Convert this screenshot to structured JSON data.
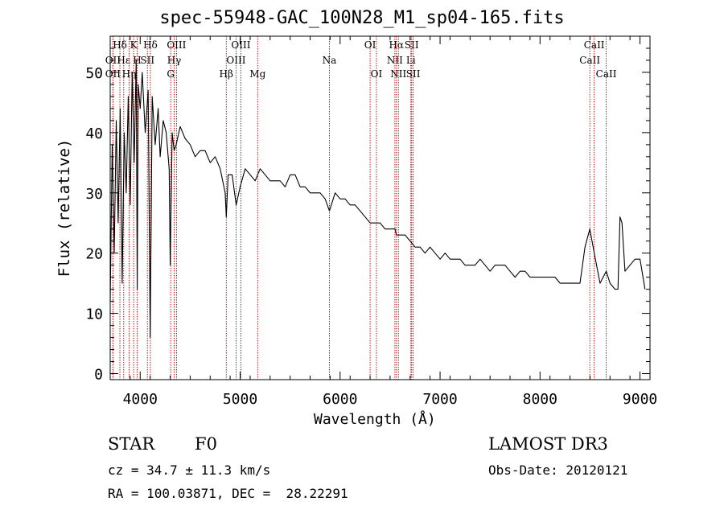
{
  "chart_data": {
    "type": "line",
    "title": "spec-55948-GAC_100N28_M1_sp04-165.fits",
    "xlabel": "Wavelength (Å)",
    "ylabel": "Flux (relative)",
    "xlim": [
      3700,
      9100
    ],
    "ylim": [
      -1,
      56
    ],
    "x_ticks": [
      4000,
      5000,
      6000,
      7000,
      8000,
      9000
    ],
    "y_ticks": [
      0,
      10,
      20,
      30,
      40,
      50
    ],
    "x_minor_step": 200,
    "y_minor_step": 2,
    "grid": false,
    "series": [
      {
        "name": "spectrum",
        "x": [
          3700,
          3720,
          3740,
          3760,
          3780,
          3800,
          3820,
          3840,
          3860,
          3880,
          3900,
          3920,
          3940,
          3960,
          3970,
          3980,
          4000,
          4020,
          4050,
          4080,
          4100,
          4120,
          4150,
          4180,
          4200,
          4230,
          4260,
          4290,
          4300,
          4320,
          4340,
          4360,
          4400,
          4450,
          4500,
          4550,
          4600,
          4650,
          4700,
          4750,
          4800,
          4850,
          4861,
          4880,
          4920,
          4960,
          5000,
          5050,
          5100,
          5150,
          5200,
          5250,
          5300,
          5350,
          5400,
          5450,
          5500,
          5550,
          5600,
          5650,
          5700,
          5750,
          5800,
          5850,
          5893,
          5950,
          6000,
          6050,
          6100,
          6150,
          6200,
          6250,
          6300,
          6350,
          6400,
          6450,
          6500,
          6550,
          6563,
          6600,
          6650,
          6700,
          6750,
          6800,
          6850,
          6900,
          6950,
          7000,
          7050,
          7100,
          7150,
          7200,
          7250,
          7300,
          7350,
          7400,
          7450,
          7500,
          7550,
          7600,
          7650,
          7700,
          7750,
          7800,
          7850,
          7900,
          7950,
          8000,
          8050,
          8100,
          8150,
          8200,
          8250,
          8300,
          8350,
          8400,
          8450,
          8498,
          8542,
          8600,
          8662,
          8700,
          8750,
          8780,
          8800,
          8820,
          8850,
          8900,
          8950,
          9000,
          9050
        ],
        "y": [
          12,
          38,
          20,
          42,
          25,
          44,
          15,
          40,
          30,
          46,
          28,
          50,
          35,
          52,
          14,
          48,
          44,
          50,
          40,
          47,
          6,
          46,
          38,
          44,
          36,
          42,
          40,
          34,
          18,
          40,
          37,
          38,
          41,
          39,
          38,
          36,
          37,
          37,
          35,
          36,
          34,
          30,
          26,
          33,
          33,
          28,
          31,
          34,
          33,
          32,
          34,
          33,
          32,
          32,
          32,
          31,
          33,
          33,
          31,
          31,
          30,
          30,
          30,
          29,
          27,
          30,
          29,
          29,
          28,
          28,
          27,
          26,
          25,
          25,
          25,
          24,
          24,
          24,
          23,
          23,
          23,
          22,
          21,
          21,
          20,
          21,
          20,
          19,
          20,
          19,
          19,
          19,
          18,
          18,
          18,
          19,
          18,
          17,
          18,
          18,
          18,
          17,
          16,
          17,
          17,
          16,
          16,
          16,
          16,
          16,
          16,
          15,
          15,
          15,
          15,
          15,
          21,
          24,
          20,
          15,
          17,
          15,
          14,
          14,
          26,
          25,
          17,
          18,
          19,
          19,
          14
        ]
      }
    ],
    "line_markers": [
      {
        "label": "Hδ",
        "x": 3797,
        "row": 0
      },
      {
        "label": "OII",
        "x": 3727,
        "row": 1
      },
      {
        "label": "OII",
        "x": 3727,
        "row": 2
      },
      {
        "label": "Hε",
        "x": 3835,
        "row": 1
      },
      {
        "label": "Hη",
        "x": 3889,
        "row": 2
      },
      {
        "label": "K",
        "x": 3934,
        "row": 0
      },
      {
        "label": "H",
        "x": 3969,
        "row": 1
      },
      {
        "label": "SII",
        "x": 4072,
        "row": 1
      },
      {
        "label": "Hδ",
        "x": 4102,
        "row": 0
      },
      {
        "label": "OIII",
        "x": 4363,
        "row": 0
      },
      {
        "label": "Hγ",
        "x": 4340,
        "row": 1
      },
      {
        "label": "G",
        "x": 4305,
        "row": 2
      },
      {
        "label": "Hβ",
        "x": 4861,
        "row": 2
      },
      {
        "label": "OIII",
        "x": 4959,
        "row": 1
      },
      {
        "label": "OIII",
        "x": 5007,
        "row": 0
      },
      {
        "label": "Mg",
        "x": 5175,
        "row": 2
      },
      {
        "label": "Na",
        "x": 5893,
        "row": 1
      },
      {
        "label": "OI",
        "x": 6300,
        "row": 0
      },
      {
        "label": "OI",
        "x": 6363,
        "row": 2
      },
      {
        "label": "NII",
        "x": 6548,
        "row": 1
      },
      {
        "label": "Hα",
        "x": 6563,
        "row": 0
      },
      {
        "label": "NII",
        "x": 6583,
        "row": 2
      },
      {
        "label": "Li",
        "x": 6708,
        "row": 1
      },
      {
        "label": "SII",
        "x": 6716,
        "row": 0
      },
      {
        "label": "SII",
        "x": 6731,
        "row": 2
      },
      {
        "label": "CaII",
        "x": 8498,
        "row": 1
      },
      {
        "label": "CaII",
        "x": 8542,
        "row": 0
      },
      {
        "label": "CaII",
        "x": 8662,
        "row": 2
      }
    ]
  },
  "info": {
    "object_class": "STAR",
    "subclass": "F0",
    "survey": "LAMOST DR3",
    "cz": "cz = 34.7 ± 11.3 km/s",
    "obs_date": "Obs-Date: 20120121",
    "coords": "RA = 100.03871, DEC =  28.22291"
  }
}
